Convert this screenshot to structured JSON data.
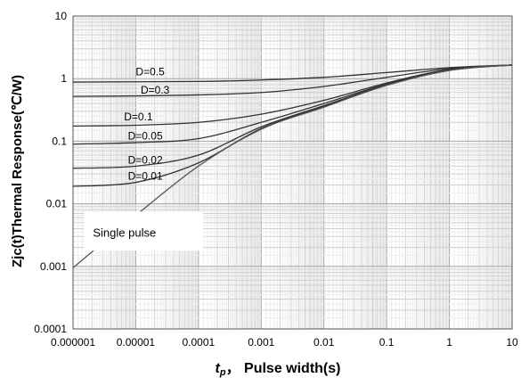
{
  "chart_data": {
    "type": "line",
    "xscale": "log",
    "yscale": "log",
    "xlim": [
      1e-06,
      10
    ],
    "ylim": [
      0.0001,
      10
    ],
    "grid": true,
    "xlabel": {
      "var": "t",
      "sub": "p",
      "text": "，  Pulse width(s)"
    },
    "ylabel": "Zjc(t)Thermal Response(℃/W)",
    "xticks": [
      {
        "v": 1e-06,
        "label": "0.000001"
      },
      {
        "v": 1e-05,
        "label": "0.00001"
      },
      {
        "v": 0.0001,
        "label": "0.0001"
      },
      {
        "v": 0.001,
        "label": "0.001"
      },
      {
        "v": 0.01,
        "label": "0.01"
      },
      {
        "v": 0.1,
        "label": "0.1"
      },
      {
        "v": 1,
        "label": "1"
      },
      {
        "v": 10,
        "label": "10"
      }
    ],
    "yticks": [
      {
        "v": 10,
        "label": "10"
      },
      {
        "v": 1,
        "label": "1"
      },
      {
        "v": 0.1,
        "label": "0.1"
      },
      {
        "v": 0.01,
        "label": "0.01"
      },
      {
        "v": 0.001,
        "label": "0.001"
      },
      {
        "v": 0.0001,
        "label": "0.0001"
      }
    ],
    "series": [
      {
        "name": "D=0.5",
        "label_at": [
          1e-05,
          1.12
        ],
        "x": [
          1e-06,
          1e-05,
          0.0001,
          0.001,
          0.01,
          0.1,
          1,
          10
        ],
        "y": [
          0.88,
          0.89,
          0.9,
          0.95,
          1.05,
          1.25,
          1.5,
          1.65
        ]
      },
      {
        "name": "D=0.3",
        "label_at": [
          1.2e-05,
          0.58
        ],
        "x": [
          1e-06,
          1e-05,
          0.0001,
          0.001,
          0.01,
          0.1,
          1,
          10
        ],
        "y": [
          0.52,
          0.53,
          0.55,
          0.6,
          0.75,
          1.05,
          1.45,
          1.65
        ]
      },
      {
        "name": "D=0.1",
        "label_at": [
          6.5e-06,
          0.215
        ],
        "x": [
          1e-06,
          1e-05,
          0.0001,
          0.001,
          0.01,
          0.1,
          1,
          10
        ],
        "y": [
          0.175,
          0.18,
          0.2,
          0.27,
          0.45,
          0.85,
          1.4,
          1.65
        ]
      },
      {
        "name": "D=0.05",
        "label_at": [
          7.5e-06,
          0.107
        ],
        "x": [
          1e-06,
          1e-05,
          0.0001,
          0.001,
          0.01,
          0.1,
          1,
          10
        ],
        "y": [
          0.09,
          0.095,
          0.11,
          0.2,
          0.4,
          0.82,
          1.38,
          1.65
        ]
      },
      {
        "name": "D=0.02",
        "label_at": [
          7.5e-06,
          0.044
        ],
        "x": [
          1e-06,
          1e-05,
          0.0001,
          0.001,
          0.01,
          0.1,
          1,
          10
        ],
        "y": [
          0.037,
          0.04,
          0.06,
          0.17,
          0.37,
          0.8,
          1.37,
          1.65
        ]
      },
      {
        "name": "D=0.01",
        "label_at": [
          7.5e-06,
          0.0245
        ],
        "x": [
          1e-06,
          1e-05,
          0.0001,
          0.001,
          0.01,
          0.1,
          1,
          10
        ],
        "y": [
          0.019,
          0.022,
          0.045,
          0.16,
          0.36,
          0.79,
          1.36,
          1.65
        ]
      },
      {
        "name": "Single pulse",
        "label_at": null,
        "x": [
          1e-06,
          1e-05,
          0.0001,
          0.001,
          0.01,
          0.1,
          1,
          10
        ],
        "y": [
          0.00095,
          0.0065,
          0.04,
          0.155,
          0.35,
          0.78,
          1.35,
          1.65
        ]
      }
    ],
    "annotations": [
      {
        "text": "Single pulse",
        "at": [
          1.6e-06,
          0.003
        ]
      }
    ]
  }
}
